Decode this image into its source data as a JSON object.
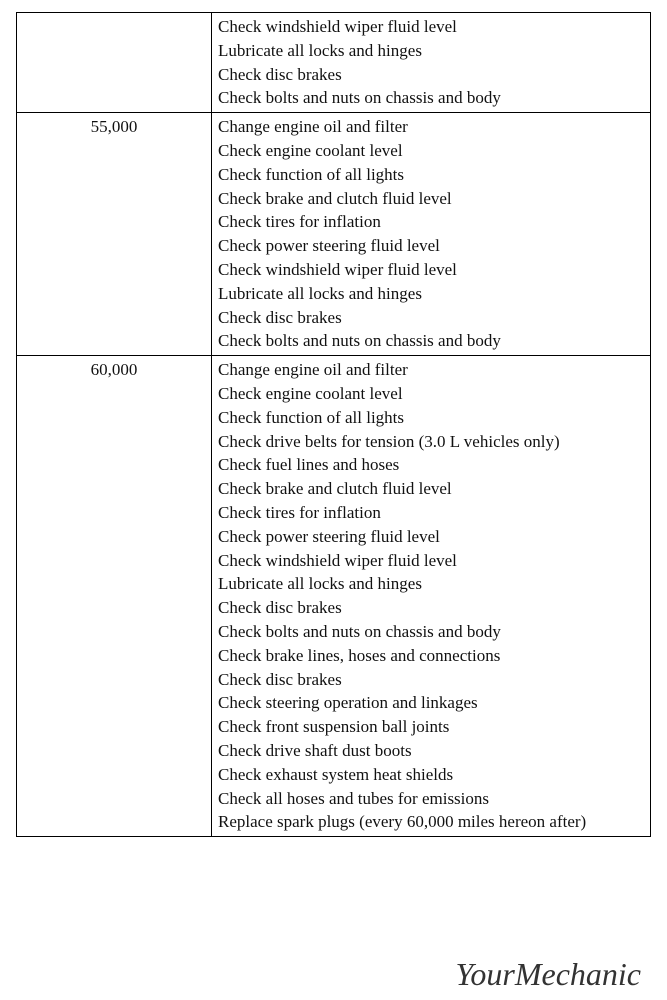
{
  "table": {
    "border_color": "#000000",
    "background_color": "#ffffff",
    "text_color": "#111111",
    "font_size": 17,
    "rows": [
      {
        "mileage": "",
        "tasks": [
          "Check windshield wiper fluid level",
          "Lubricate all locks and hinges",
          "Check disc brakes",
          "Check bolts and nuts on chassis and body"
        ]
      },
      {
        "mileage": "55,000",
        "tasks": [
          "Change engine oil and filter",
          "Check engine coolant level",
          "Check function of all lights",
          "Check brake and clutch fluid level",
          "Check tires for inflation",
          "Check power steering fluid level",
          "Check windshield wiper fluid level",
          "Lubricate all locks and hinges",
          "Check disc brakes",
          "Check bolts and nuts on chassis and body"
        ]
      },
      {
        "mileage": "60,000",
        "tasks": [
          "Change engine oil and filter",
          "Check engine coolant level",
          "Check function of all lights",
          "Check drive belts for tension (3.0 L vehicles only)",
          "Check fuel lines and hoses",
          "Check brake and clutch fluid level",
          "Check tires for inflation",
          "Check power steering fluid level",
          "Check windshield wiper fluid level",
          "Lubricate all locks and hinges",
          "Check disc brakes",
          "Check bolts and nuts on chassis and body",
          "Check brake lines, hoses and connections",
          "Check disc brakes",
          "Check steering operation and linkages",
          "Check front suspension ball joints",
          "Check drive shaft dust boots",
          "Check exhaust system heat shields",
          "Check all hoses and tubes for emissions",
          "Replace spark plugs (every 60,000 miles hereon after)"
        ]
      }
    ]
  },
  "watermark": "YourMechanic"
}
